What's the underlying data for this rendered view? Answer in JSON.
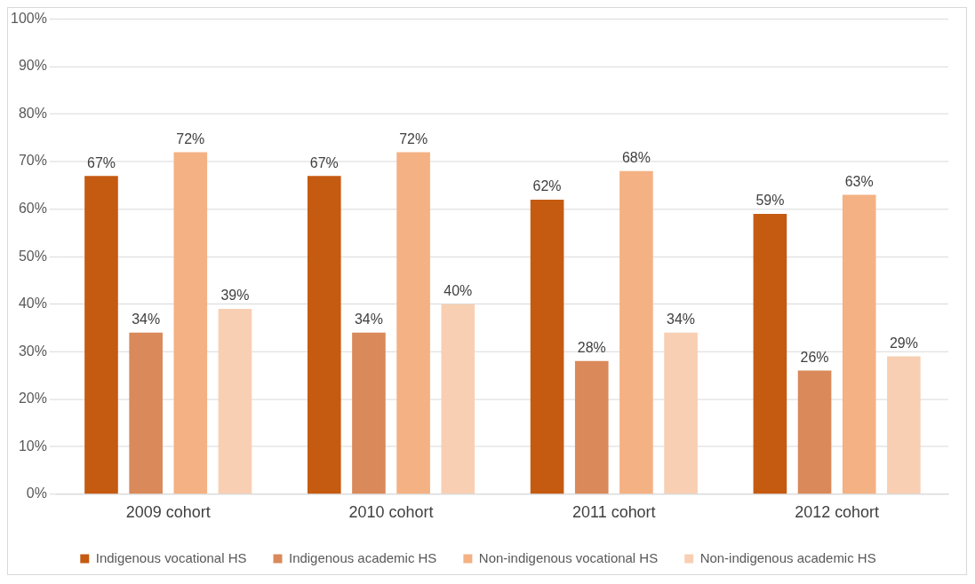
{
  "chart_data": {
    "type": "bar",
    "categories": [
      "2009 cohort",
      "2010 cohort",
      "2011 cohort",
      "2012 cohort"
    ],
    "series": [
      {
        "name": "Indigenous vocational HS",
        "color": "#c55a11",
        "values": [
          67,
          67,
          62,
          59
        ],
        "value_labels": [
          "67%",
          "67%",
          "62%",
          "59%"
        ]
      },
      {
        "name": "Indigenous academic HS",
        "color": "#d9895a",
        "values": [
          34,
          34,
          28,
          26
        ],
        "value_labels": [
          "34%",
          "34%",
          "28%",
          "26%"
        ]
      },
      {
        "name": "Non-indigenous vocational HS",
        "color": "#f4b183",
        "values": [
          72,
          72,
          68,
          63
        ],
        "value_labels": [
          "72%",
          "72%",
          "68%",
          "63%"
        ]
      },
      {
        "name": "Non-indigenous academic HS",
        "color": "#f8cfb3",
        "values": [
          39,
          40,
          34,
          29
        ],
        "value_labels": [
          "39%",
          "40%",
          "34%",
          "29%"
        ]
      }
    ],
    "ylim": [
      0,
      100
    ],
    "yticks": [
      {
        "value": 0,
        "label": "0%"
      },
      {
        "value": 10,
        "label": "10%"
      },
      {
        "value": 20,
        "label": "20%"
      },
      {
        "value": 30,
        "label": "30%"
      },
      {
        "value": 40,
        "label": "40%"
      },
      {
        "value": 50,
        "label": "50%"
      },
      {
        "value": 60,
        "label": "60%"
      },
      {
        "value": 70,
        "label": "70%"
      },
      {
        "value": 80,
        "label": "80%"
      },
      {
        "value": 90,
        "label": "90%"
      },
      {
        "value": 100,
        "label": "100%"
      }
    ],
    "grid": "y",
    "legend": "bottom"
  }
}
